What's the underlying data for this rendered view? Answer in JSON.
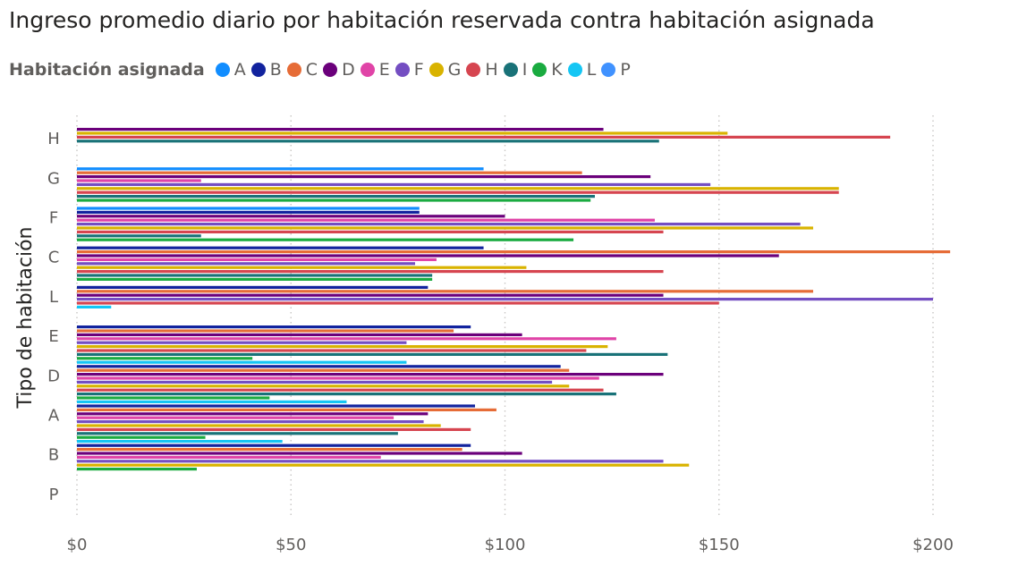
{
  "chart_data": {
    "type": "bar",
    "orientation": "horizontal",
    "title": "Ingreso promedio diario por habitación reservada contra habitación asignada",
    "legend_title": "Habitación asignada",
    "legend_position": "top-left",
    "ylabel": "Tipo de habitación",
    "xlabel": "",
    "xlim": [
      0,
      210
    ],
    "x_ticks": [
      0,
      50,
      100,
      150,
      200
    ],
    "x_tick_labels": [
      "$0",
      "$50",
      "$100",
      "$150",
      "$200"
    ],
    "grid": true,
    "categories": [
      "H",
      "G",
      "F",
      "C",
      "L",
      "E",
      "D",
      "A",
      "B",
      "P"
    ],
    "series": [
      {
        "name": "A",
        "color": "#118dff",
        "values": [
          null,
          95,
          80,
          null,
          null,
          null,
          null,
          null,
          null,
          null
        ]
      },
      {
        "name": "B",
        "color": "#12239e",
        "values": [
          null,
          null,
          80,
          95,
          82,
          92,
          113,
          93,
          92,
          null
        ]
      },
      {
        "name": "C",
        "color": "#e66c37",
        "values": [
          null,
          118,
          null,
          204,
          172,
          88,
          115,
          98,
          90,
          null
        ]
      },
      {
        "name": "D",
        "color": "#6b007b",
        "values": [
          123,
          134,
          100,
          164,
          137,
          104,
          137,
          82,
          104,
          null
        ]
      },
      {
        "name": "E",
        "color": "#e044a7",
        "values": [
          null,
          29,
          135,
          84,
          null,
          126,
          122,
          74,
          71,
          null
        ]
      },
      {
        "name": "F",
        "color": "#744ec2",
        "values": [
          null,
          148,
          169,
          79,
          200,
          77,
          111,
          81,
          137,
          null
        ]
      },
      {
        "name": "G",
        "color": "#d9b300",
        "values": [
          152,
          178,
          172,
          105,
          null,
          124,
          115,
          85,
          143,
          null
        ]
      },
      {
        "name": "H",
        "color": "#d64550",
        "values": [
          190,
          178,
          137,
          137,
          150,
          119,
          123,
          92,
          null,
          null
        ]
      },
      {
        "name": "I",
        "color": "#197278",
        "values": [
          136,
          121,
          29,
          83,
          null,
          138,
          126,
          75,
          null,
          null
        ]
      },
      {
        "name": "K",
        "color": "#1aab40",
        "values": [
          null,
          120,
          116,
          83,
          null,
          41,
          45,
          30,
          28,
          null
        ]
      },
      {
        "name": "L",
        "color": "#15c6f4",
        "values": [
          null,
          null,
          null,
          null,
          8,
          77,
          63,
          48,
          null,
          null
        ]
      },
      {
        "name": "P",
        "color": "#4092ff",
        "values": [
          null,
          null,
          null,
          null,
          null,
          null,
          null,
          null,
          null,
          null
        ]
      }
    ]
  }
}
